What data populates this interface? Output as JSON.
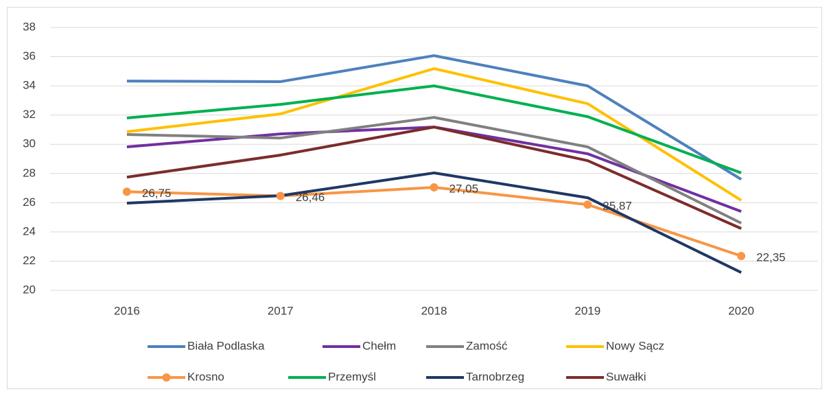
{
  "chart_data": {
    "type": "line",
    "categories": [
      "2016",
      "2017",
      "2018",
      "2019",
      "2020"
    ],
    "ylim": [
      20,
      38
    ],
    "yticks": [
      20,
      22,
      24,
      26,
      28,
      30,
      32,
      34,
      36,
      38
    ],
    "grid": true,
    "legend": "bottom",
    "series": [
      {
        "name": "Biała Podlaska",
        "color": "#4e81bd",
        "values": [
          34.33,
          34.29,
          36.07,
          34.0,
          27.6
        ]
      },
      {
        "name": "Chełm",
        "color": "#7030a0",
        "values": [
          29.82,
          30.71,
          31.18,
          29.35,
          25.4
        ]
      },
      {
        "name": "Zamość",
        "color": "#808080",
        "values": [
          30.67,
          30.43,
          31.84,
          29.82,
          24.6
        ]
      },
      {
        "name": "Nowy Sącz",
        "color": "#ffc000",
        "values": [
          30.86,
          32.08,
          35.18,
          32.78,
          26.16
        ]
      },
      {
        "name": "Krosno",
        "color": "#f79646",
        "markers": true,
        "values": [
          26.75,
          26.46,
          27.05,
          25.87,
          22.35
        ],
        "value_labels": [
          "26,75",
          "26,46",
          "27,05",
          "25,87",
          "22,35"
        ]
      },
      {
        "name": "Przemyśl",
        "color": "#00b050",
        "values": [
          31.8,
          32.73,
          34.0,
          31.89,
          28.04
        ]
      },
      {
        "name": "Tarnobrzeg",
        "color": "#1f3864",
        "values": [
          25.97,
          26.48,
          28.04,
          26.34,
          21.22
        ]
      },
      {
        "name": "Suwałki",
        "color": "#7b2c2c",
        "values": [
          27.75,
          29.26,
          31.18,
          28.88,
          24.23
        ]
      }
    ]
  }
}
